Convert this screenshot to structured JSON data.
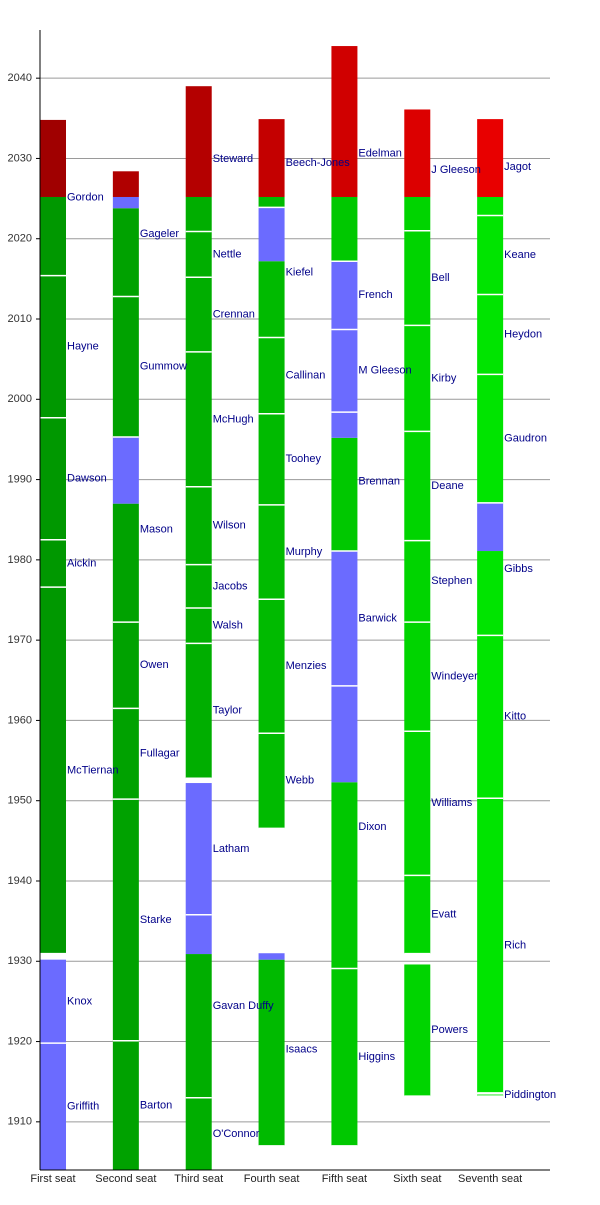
{
  "chart_data": {
    "type": "timeline",
    "ylim": [
      1904,
      2046
    ],
    "yticks": [
      1910,
      1920,
      1930,
      1940,
      1950,
      1960,
      1970,
      1980,
      1990,
      2000,
      2010,
      2020,
      2030,
      2040
    ],
    "grid": true,
    "today": 2025.2,
    "seats": [
      {
        "name": "First seat",
        "color": "#009800",
        "chief_color": "#6b6bff",
        "future_color": "#a00000",
        "terms": [
          {
            "name": "Griffith",
            "start": 1903.8,
            "end": 1919.8,
            "chief_start": 1903.8
          },
          {
            "name": "Knox",
            "start": 1919.8,
            "end": 1930.2,
            "chief_start": 1919.8
          },
          {
            "name": "McTiernan",
            "start": 1930.95,
            "end": 1976.6
          },
          {
            "name": "Aickin",
            "start": 1976.6,
            "end": 1982.5
          },
          {
            "name": "Dawson",
            "start": 1982.5,
            "end": 1997.7
          },
          {
            "name": "Hayne",
            "start": 1997.7,
            "end": 2015.4
          },
          {
            "name": "Gordon",
            "start": 2015.4,
            "end": 2034.8
          }
        ]
      },
      {
        "name": "Second seat",
        "color": "#00a200",
        "chief_color": "#6b6bff",
        "future_color": "#b00000",
        "terms": [
          {
            "name": "Barton",
            "start": 1903.8,
            "end": 1920.1
          },
          {
            "name": "Starke",
            "start": 1920.1,
            "end": 1950.2
          },
          {
            "name": "Fullagar",
            "start": 1950.2,
            "end": 1961.5
          },
          {
            "name": "Owen",
            "start": 1961.5,
            "end": 1972.25
          },
          {
            "name": "Mason",
            "start": 1972.25,
            "end": 1995.3,
            "chief_start": 1987.0
          },
          {
            "name": "Gummow",
            "start": 1995.3,
            "end": 2012.8
          },
          {
            "name": "Gageler",
            "start": 2012.8,
            "end": 2028.4,
            "chief_start": 2023.8
          }
        ]
      },
      {
        "name": "Third seat",
        "color": "#00ae00",
        "chief_color": "#6b6bff",
        "future_color": "#b40000",
        "terms": [
          {
            "name": "O'Connor",
            "start": 1903.8,
            "end": 1913.0
          },
          {
            "name": "Gavan Duffy",
            "start": 1913.0,
            "end": 1935.8,
            "chief_start": 1930.9
          },
          {
            "name": "Latham",
            "start": 1935.8,
            "end": 1952.2,
            "chief_start": 1935.8
          },
          {
            "name": "Taylor",
            "start": 1952.8,
            "end": 1969.6
          },
          {
            "name": "Walsh",
            "start": 1969.6,
            "end": 1974.0
          },
          {
            "name": "Jacobs",
            "start": 1974.0,
            "end": 1979.4
          },
          {
            "name": "Wilson",
            "start": 1979.4,
            "end": 1989.1
          },
          {
            "name": "McHugh",
            "start": 1989.1,
            "end": 2005.9
          },
          {
            "name": "Crennan",
            "start": 2005.9,
            "end": 2015.2
          },
          {
            "name": "Nettle",
            "start": 2015.2,
            "end": 2020.9
          },
          {
            "name": "Steward",
            "start": 2020.9,
            "end": 2039.0
          }
        ]
      },
      {
        "name": "Fourth seat",
        "color": "#00ba00",
        "chief_color": "#6b6bff",
        "future_color": "#c40000",
        "terms": [
          {
            "name": "Isaacs",
            "start": 1907.0,
            "end": 1931.0,
            "chief_start": 1930.2
          },
          {
            "name": "Webb",
            "start": 1946.55,
            "end": 1958.4
          },
          {
            "name": "Menzies",
            "start": 1958.4,
            "end": 1975.1
          },
          {
            "name": "Murphy",
            "start": 1975.1,
            "end": 1986.85
          },
          {
            "name": "Toohey",
            "start": 1986.85,
            "end": 1998.2
          },
          {
            "name": "Callinan",
            "start": 1998.2,
            "end": 2007.7
          },
          {
            "name": "Kiefel",
            "start": 2007.7,
            "end": 2023.9,
            "chief_start": 2017.2
          },
          {
            "name": "Beech-Jones",
            "start": 2023.9,
            "end": 2034.9
          }
        ]
      },
      {
        "name": "Fifth seat",
        "color": "#00c800",
        "chief_color": "#6b6bff",
        "future_color": "#d00000",
        "terms": [
          {
            "name": "Higgins",
            "start": 1907.0,
            "end": 1929.1
          },
          {
            "name": "Dixon",
            "start": 1929.1,
            "end": 1964.3,
            "chief_start": 1952.3
          },
          {
            "name": "Barwick",
            "start": 1964.3,
            "end": 1981.1,
            "chief_start": 1964.3
          },
          {
            "name": "Brennan",
            "start": 1981.1,
            "end": 1998.4,
            "chief_start": 1995.2
          },
          {
            "name": "M Gleeson",
            "start": 1998.4,
            "end": 2008.7,
            "chief_start": 1998.4
          },
          {
            "name": "French",
            "start": 2008.7,
            "end": 2017.2,
            "chief_start": 2008.7
          },
          {
            "name": "Edelman",
            "start": 2017.2,
            "end": 2044.0
          }
        ]
      },
      {
        "name": "Sixth seat",
        "color": "#00d400",
        "chief_color": "#6b6bff",
        "future_color": "#dc0000",
        "terms": [
          {
            "name": "Powers",
            "start": 1913.2,
            "end": 1929.6
          },
          {
            "name": "Evatt",
            "start": 1930.95,
            "end": 1940.7
          },
          {
            "name": "Williams",
            "start": 1940.7,
            "end": 1958.65
          },
          {
            "name": "Windeyer",
            "start": 1958.65,
            "end": 1972.25
          },
          {
            "name": "Stephen",
            "start": 1972.25,
            "end": 1982.4
          },
          {
            "name": "Deane",
            "start": 1982.4,
            "end": 1996.0
          },
          {
            "name": "Kirby",
            "start": 1996.0,
            "end": 2009.2
          },
          {
            "name": "Bell",
            "start": 2009.2,
            "end": 2021.0
          },
          {
            "name": "J Gleeson",
            "start": 2021.0,
            "end": 2036.1
          }
        ]
      },
      {
        "name": "Seventh seat",
        "color": "#00e400",
        "chief_color": "#6b6bff",
        "future_color": "#e80000",
        "terms": [
          {
            "name": "Piddington",
            "start": 1913.2,
            "end": 1913.4
          },
          {
            "name": "Rich",
            "start": 1913.6,
            "end": 1950.3
          },
          {
            "name": "Kitto",
            "start": 1950.3,
            "end": 1970.6
          },
          {
            "name": "Gibbs",
            "start": 1970.6,
            "end": 1987.1,
            "chief_start": 1981.1
          },
          {
            "name": "Gaudron",
            "start": 1987.1,
            "end": 2003.1
          },
          {
            "name": "Heydon",
            "start": 2003.1,
            "end": 2013.05
          },
          {
            "name": "Keane",
            "start": 2013.05,
            "end": 2022.9
          },
          {
            "name": "Jagot",
            "start": 2022.9,
            "end": 2034.9
          }
        ]
      }
    ]
  }
}
